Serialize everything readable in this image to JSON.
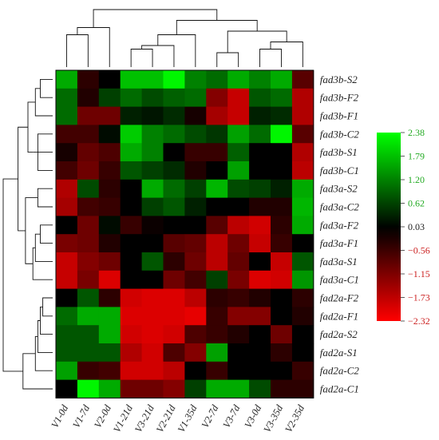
{
  "chart_data": {
    "type": "heatmap",
    "columns": [
      "V1-0d",
      "V1-7d",
      "V2-0d",
      "V1-21d",
      "V3-21d",
      "V2-21d",
      "V1-35d",
      "V2-7d",
      "V3-7d",
      "V3-0d",
      "V3-35d",
      "V2-35d"
    ],
    "rows": [
      "fad3b-S2",
      "fad3b-F2",
      "fad3b-F1",
      "fad3b-C2",
      "fad3b-S1",
      "fad3b-C1",
      "fad3a-S2",
      "fad3a-C2",
      "fad3a-F2",
      "fad3a-F1",
      "fad3a-S1",
      "fad3a-C1",
      "fad2a-F2",
      "fad2a-F1",
      "fad2a-S2",
      "fad2a-S1",
      "fad2a-C2",
      "fad2a-C1"
    ],
    "values": [
      [
        1.6,
        -0.4,
        0.0,
        1.8,
        1.8,
        2.3,
        1.2,
        1.0,
        1.6,
        1.2,
        1.6,
        -0.8
      ],
      [
        1.0,
        -0.3,
        0.6,
        1.0,
        0.7,
        0.9,
        1.0,
        -1.2,
        -1.8,
        0.8,
        1.0,
        -1.6
      ],
      [
        1.0,
        -1.0,
        -1.0,
        0.3,
        0.2,
        0.4,
        -0.2,
        -1.5,
        -1.8,
        0.3,
        0.4,
        -1.6
      ],
      [
        -0.6,
        -0.6,
        0.1,
        1.9,
        1.2,
        1.0,
        0.7,
        0.5,
        1.5,
        1.0,
        2.3,
        -0.8
      ],
      [
        -0.2,
        -0.9,
        -0.7,
        1.6,
        1.2,
        0.0,
        -0.5,
        -0.5,
        0.9,
        0.0,
        0.0,
        -1.6
      ],
      [
        -0.6,
        -1.0,
        -0.5,
        0.8,
        0.6,
        0.4,
        -0.3,
        0.0,
        1.5,
        0.0,
        0.0,
        -1.7
      ],
      [
        -1.6,
        0.7,
        -0.4,
        0.0,
        1.6,
        1.0,
        0.6,
        1.7,
        0.7,
        0.6,
        0.3,
        1.6
      ],
      [
        -1.5,
        -0.6,
        -0.5,
        0.0,
        0.6,
        0.8,
        0.3,
        0.0,
        0.0,
        -0.3,
        -0.3,
        1.7
      ],
      [
        0.0,
        -1.0,
        0.1,
        -0.5,
        -0.1,
        0.0,
        0.0,
        -0.8,
        -1.7,
        -1.9,
        -0.4,
        1.6
      ],
      [
        -1.1,
        -1.0,
        -0.3,
        0.0,
        0.0,
        -0.8,
        -0.9,
        -1.7,
        -1.0,
        -1.8,
        -0.5,
        0.0
      ],
      [
        -1.8,
        -1.2,
        -1.0,
        0.0,
        0.8,
        -0.4,
        -1.0,
        -1.7,
        -0.9,
        0.0,
        -1.8,
        0.8
      ],
      [
        -1.8,
        -1.1,
        -2.0,
        0.0,
        0.0,
        -1.0,
        -0.6,
        0.6,
        -1.1,
        -2.0,
        -1.9,
        1.4
      ],
      [
        0.0,
        0.8,
        -0.4,
        -1.9,
        -2.0,
        -2.0,
        -1.7,
        -0.4,
        -0.5,
        -0.3,
        0.0,
        -0.4
      ],
      [
        1.0,
        1.6,
        1.6,
        -2.0,
        -2.0,
        -2.0,
        -2.1,
        -0.5,
        -1.2,
        -1.2,
        0.0,
        -0.3
      ],
      [
        0.8,
        0.8,
        1.6,
        -1.9,
        -2.0,
        -1.9,
        -0.7,
        -0.5,
        -0.3,
        0.0,
        -1.0,
        0.0
      ],
      [
        0.8,
        0.8,
        0.8,
        -1.6,
        -1.9,
        -0.7,
        -1.2,
        1.5,
        0.0,
        0.0,
        -0.4,
        0.0
      ],
      [
        1.5,
        -0.5,
        -0.6,
        -1.9,
        -1.9,
        -1.7,
        0.0,
        -0.5,
        0.0,
        0.0,
        0.0,
        -0.5
      ],
      [
        0.0,
        2.3,
        1.6,
        -1.0,
        -1.0,
        -1.2,
        0.6,
        1.6,
        1.6,
        0.7,
        -0.4,
        -0.4
      ]
    ],
    "scale": {
      "ticks": [
        "2.38",
        "1.79",
        "1.20",
        "0.62",
        "0.03",
        "−0.56",
        "−1.15",
        "−1.73",
        "−2.32"
      ],
      "tick_values": [
        2.38,
        1.79,
        1.2,
        0.62,
        0.03,
        -0.56,
        -1.15,
        -1.73,
        -2.32
      ],
      "min": -2.32,
      "max": 2.38,
      "colors": {
        "high": "#00ff00",
        "mid": "#000000",
        "low": "#ff0000"
      },
      "tick_colors": [
        "#22aa22",
        "#22aa22",
        "#22aa22",
        "#22aa22",
        "#222222",
        "#cc2222",
        "#cc2222",
        "#cc2222",
        "#cc2222"
      ]
    },
    "row_dendrogram": [
      [
        0,
        1
      ],
      [
        18,
        2
      ],
      [
        3,
        5
      ],
      [
        20,
        4
      ],
      [
        19,
        21
      ],
      [
        6,
        7
      ],
      [
        8,
        9
      ],
      [
        24,
        10
      ],
      [
        25,
        11
      ],
      [
        23,
        26
      ],
      [
        22,
        27
      ],
      [
        12,
        13
      ],
      [
        29,
        14
      ],
      [
        30,
        15
      ],
      [
        31,
        16
      ],
      [
        32,
        17
      ],
      [
        28,
        33
      ]
    ],
    "col_dendrogram": [
      [
        0,
        1
      ],
      [
        12,
        2
      ],
      [
        3,
        4
      ],
      [
        14,
        5
      ],
      [
        15,
        6
      ],
      [
        7,
        8
      ],
      [
        9,
        10
      ],
      [
        18,
        11
      ],
      [
        17,
        19
      ],
      [
        16,
        20
      ],
      [
        13,
        21
      ]
    ],
    "row_merge_heights": [
      0.5,
      0.7,
      0.6,
      0.8,
      1.0,
      0.6,
      0.5,
      0.7,
      0.8,
      1.1,
      1.4,
      0.4,
      0.5,
      0.6,
      0.7,
      1.2,
      2.0
    ],
    "col_merge_heights": [
      0.9,
      1.1,
      0.5,
      0.6,
      0.9,
      0.4,
      0.5,
      0.7,
      1.0,
      1.3,
      1.6
    ]
  }
}
